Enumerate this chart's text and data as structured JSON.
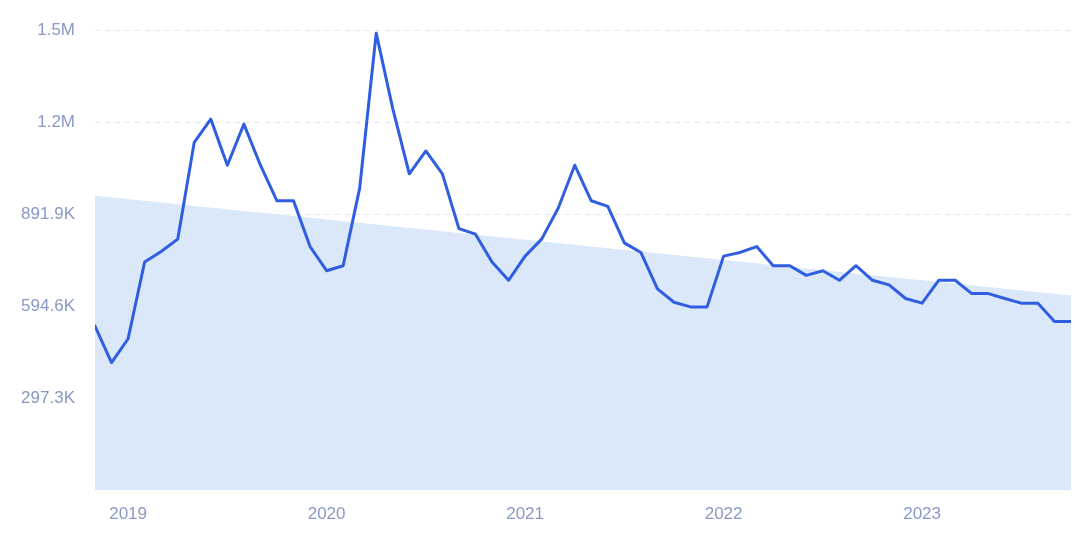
{
  "chart_data": {
    "type": "line",
    "xlim": [
      "2018-11",
      "2023-10"
    ],
    "xticks": [
      "2019",
      "2020",
      "2021",
      "2022",
      "2023"
    ],
    "ylim": [
      0,
      1486500
    ],
    "yticks": [
      {
        "value": 297300,
        "label": "297.3K"
      },
      {
        "value": 594600,
        "label": "594.6K"
      },
      {
        "value": 891900,
        "label": "891.9K"
      },
      {
        "value": 1189200,
        "label": "1.2M"
      },
      {
        "value": 1486500,
        "label": "1.5M"
      }
    ],
    "grid": "y",
    "legend": false,
    "marker": "none",
    "line_style": "solid",
    "series": [
      {
        "color": "#2f5fe0",
        "x": [
          "2018-11",
          "2018-12",
          "2019-01",
          "2019-02",
          "2019-03",
          "2019-04",
          "2019-05",
          "2019-06",
          "2019-07",
          "2019-08",
          "2019-09",
          "2019-10",
          "2019-11",
          "2019-12",
          "2020-01",
          "2020-02",
          "2020-03",
          "2020-04",
          "2020-05",
          "2020-06",
          "2020-07",
          "2020-08",
          "2020-09",
          "2020-10",
          "2020-11",
          "2020-12",
          "2021-01",
          "2021-02",
          "2021-03",
          "2021-04",
          "2021-05",
          "2021-06",
          "2021-07",
          "2021-08",
          "2021-09",
          "2021-10",
          "2021-11",
          "2021-12",
          "2022-01",
          "2022-02",
          "2022-03",
          "2022-04",
          "2022-05",
          "2022-06",
          "2022-07",
          "2022-08",
          "2022-09",
          "2022-10",
          "2022-11",
          "2022-12",
          "2023-01",
          "2023-02",
          "2023-03",
          "2023-04",
          "2023-05",
          "2023-06",
          "2023-07",
          "2023-08",
          "2023-09",
          "2023-10"
        ],
        "values": [
          530000,
          412000,
          489000,
          737000,
          771000,
          811000,
          1124000,
          1199000,
          1050000,
          1183000,
          1050000,
          935000,
          935000,
          787000,
          709000,
          725000,
          976000,
          1477000,
          1233000,
          1022000,
          1096000,
          1022000,
          845000,
          827000,
          737000,
          678000,
          756000,
          811000,
          911000,
          1050000,
          935000,
          917000,
          799000,
          768000,
          650000,
          607000,
          592000,
          592000,
          756000,
          768000,
          787000,
          725000,
          725000,
          694000,
          709000,
          678000,
          725000,
          678000,
          663000,
          619000,
          604000,
          678000,
          678000,
          635000,
          635000,
          619000,
          604000,
          604000,
          545000,
          545000
        ]
      },
      {
        "type": "area",
        "color": "#dbe8fa",
        "x": [
          "2018-11",
          "2023-10"
        ],
        "values": [
          951000,
          629000
        ]
      }
    ]
  }
}
